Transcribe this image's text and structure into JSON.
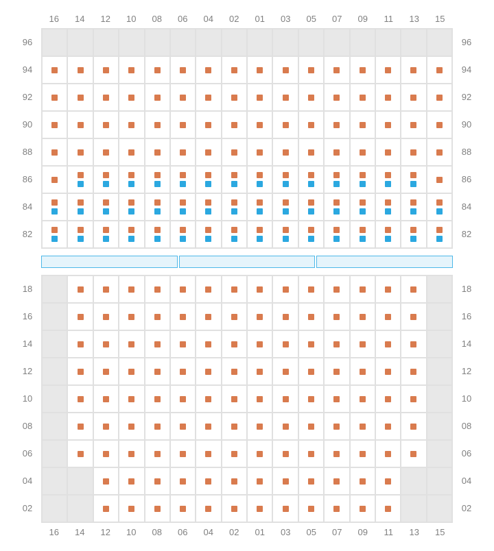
{
  "colors": {
    "orange": "#d97b4e",
    "blue": "#2ba8e0",
    "empty_bg": "#e8e8e8",
    "grid_line": "#e0e0e0",
    "label": "#808080",
    "stage_fill": "#e5f4fb",
    "stage_border": "#4db8e8"
  },
  "columns": [
    "16",
    "14",
    "12",
    "10",
    "08",
    "06",
    "04",
    "02",
    "01",
    "03",
    "05",
    "07",
    "09",
    "11",
    "13",
    "15"
  ],
  "upper": {
    "rowLabels": [
      "96",
      "94",
      "92",
      "90",
      "88",
      "86",
      "84",
      "82"
    ],
    "rows": [
      [
        [
          "e"
        ],
        [
          "e"
        ],
        [
          "e"
        ],
        [
          "e"
        ],
        [
          "e"
        ],
        [
          "e"
        ],
        [
          "e"
        ],
        [
          "e"
        ],
        [
          "e"
        ],
        [
          "e"
        ],
        [
          "e"
        ],
        [
          "e"
        ],
        [
          "e"
        ],
        [
          "e"
        ],
        [
          "e"
        ],
        [
          "e"
        ]
      ],
      [
        [
          "o"
        ],
        [
          "o"
        ],
        [
          "o"
        ],
        [
          "o"
        ],
        [
          "o"
        ],
        [
          "o"
        ],
        [
          "o"
        ],
        [
          "o"
        ],
        [
          "o"
        ],
        [
          "o"
        ],
        [
          "o"
        ],
        [
          "o"
        ],
        [
          "o"
        ],
        [
          "o"
        ],
        [
          "o"
        ],
        [
          "o"
        ]
      ],
      [
        [
          "o"
        ],
        [
          "o"
        ],
        [
          "o"
        ],
        [
          "o"
        ],
        [
          "o"
        ],
        [
          "o"
        ],
        [
          "o"
        ],
        [
          "o"
        ],
        [
          "o"
        ],
        [
          "o"
        ],
        [
          "o"
        ],
        [
          "o"
        ],
        [
          "o"
        ],
        [
          "o"
        ],
        [
          "o"
        ],
        [
          "o"
        ]
      ],
      [
        [
          "o"
        ],
        [
          "o"
        ],
        [
          "o"
        ],
        [
          "o"
        ],
        [
          "o"
        ],
        [
          "o"
        ],
        [
          "o"
        ],
        [
          "o"
        ],
        [
          "o"
        ],
        [
          "o"
        ],
        [
          "o"
        ],
        [
          "o"
        ],
        [
          "o"
        ],
        [
          "o"
        ],
        [
          "o"
        ],
        [
          "o"
        ]
      ],
      [
        [
          "o"
        ],
        [
          "o"
        ],
        [
          "o"
        ],
        [
          "o"
        ],
        [
          "o"
        ],
        [
          "o"
        ],
        [
          "o"
        ],
        [
          "o"
        ],
        [
          "o"
        ],
        [
          "o"
        ],
        [
          "o"
        ],
        [
          "o"
        ],
        [
          "o"
        ],
        [
          "o"
        ],
        [
          "o"
        ],
        [
          "o"
        ]
      ],
      [
        [
          "o"
        ],
        [
          "o",
          "b"
        ],
        [
          "o",
          "b"
        ],
        [
          "o",
          "b"
        ],
        [
          "o",
          "b"
        ],
        [
          "o",
          "b"
        ],
        [
          "o",
          "b"
        ],
        [
          "o",
          "b"
        ],
        [
          "o",
          "b"
        ],
        [
          "o",
          "b"
        ],
        [
          "o",
          "b"
        ],
        [
          "o",
          "b"
        ],
        [
          "o",
          "b"
        ],
        [
          "o",
          "b"
        ],
        [
          "o",
          "b"
        ],
        [
          "o"
        ]
      ],
      [
        [
          "o",
          "b"
        ],
        [
          "o",
          "b"
        ],
        [
          "o",
          "b"
        ],
        [
          "o",
          "b"
        ],
        [
          "o",
          "b"
        ],
        [
          "o",
          "b"
        ],
        [
          "o",
          "b"
        ],
        [
          "o",
          "b"
        ],
        [
          "o",
          "b"
        ],
        [
          "o",
          "b"
        ],
        [
          "o",
          "b"
        ],
        [
          "o",
          "b"
        ],
        [
          "o",
          "b"
        ],
        [
          "o",
          "b"
        ],
        [
          "o",
          "b"
        ],
        [
          "o",
          "b"
        ]
      ],
      [
        [
          "o",
          "b"
        ],
        [
          "o",
          "b"
        ],
        [
          "o",
          "b"
        ],
        [
          "o",
          "b"
        ],
        [
          "o",
          "b"
        ],
        [
          "o",
          "b"
        ],
        [
          "o",
          "b"
        ],
        [
          "o",
          "b"
        ],
        [
          "o",
          "b"
        ],
        [
          "o",
          "b"
        ],
        [
          "o",
          "b"
        ],
        [
          "o",
          "b"
        ],
        [
          "o",
          "b"
        ],
        [
          "o",
          "b"
        ],
        [
          "o",
          "b"
        ],
        [
          "o",
          "b"
        ]
      ]
    ]
  },
  "stage_segments": 3,
  "lower": {
    "rowLabels": [
      "18",
      "16",
      "14",
      "12",
      "10",
      "08",
      "06",
      "04",
      "02"
    ],
    "rows": [
      [
        [
          "e"
        ],
        [
          "o"
        ],
        [
          "o"
        ],
        [
          "o"
        ],
        [
          "o"
        ],
        [
          "o"
        ],
        [
          "o"
        ],
        [
          "o"
        ],
        [
          "o"
        ],
        [
          "o"
        ],
        [
          "o"
        ],
        [
          "o"
        ],
        [
          "o"
        ],
        [
          "o"
        ],
        [
          "o"
        ],
        [
          "e"
        ]
      ],
      [
        [
          "e"
        ],
        [
          "o"
        ],
        [
          "o"
        ],
        [
          "o"
        ],
        [
          "o"
        ],
        [
          "o"
        ],
        [
          "o"
        ],
        [
          "o"
        ],
        [
          "o"
        ],
        [
          "o"
        ],
        [
          "o"
        ],
        [
          "o"
        ],
        [
          "o"
        ],
        [
          "o"
        ],
        [
          "o"
        ],
        [
          "e"
        ]
      ],
      [
        [
          "e"
        ],
        [
          "o"
        ],
        [
          "o"
        ],
        [
          "o"
        ],
        [
          "o"
        ],
        [
          "o"
        ],
        [
          "o"
        ],
        [
          "o"
        ],
        [
          "o"
        ],
        [
          "o"
        ],
        [
          "o"
        ],
        [
          "o"
        ],
        [
          "o"
        ],
        [
          "o"
        ],
        [
          "o"
        ],
        [
          "e"
        ]
      ],
      [
        [
          "e"
        ],
        [
          "o"
        ],
        [
          "o"
        ],
        [
          "o"
        ],
        [
          "o"
        ],
        [
          "o"
        ],
        [
          "o"
        ],
        [
          "o"
        ],
        [
          "o"
        ],
        [
          "o"
        ],
        [
          "o"
        ],
        [
          "o"
        ],
        [
          "o"
        ],
        [
          "o"
        ],
        [
          "o"
        ],
        [
          "e"
        ]
      ],
      [
        [
          "e"
        ],
        [
          "o"
        ],
        [
          "o"
        ],
        [
          "o"
        ],
        [
          "o"
        ],
        [
          "o"
        ],
        [
          "o"
        ],
        [
          "o"
        ],
        [
          "o"
        ],
        [
          "o"
        ],
        [
          "o"
        ],
        [
          "o"
        ],
        [
          "o"
        ],
        [
          "o"
        ],
        [
          "o"
        ],
        [
          "e"
        ]
      ],
      [
        [
          "e"
        ],
        [
          "o"
        ],
        [
          "o"
        ],
        [
          "o"
        ],
        [
          "o"
        ],
        [
          "o"
        ],
        [
          "o"
        ],
        [
          "o"
        ],
        [
          "o"
        ],
        [
          "o"
        ],
        [
          "o"
        ],
        [
          "o"
        ],
        [
          "o"
        ],
        [
          "o"
        ],
        [
          "o"
        ],
        [
          "e"
        ]
      ],
      [
        [
          "e"
        ],
        [
          "o"
        ],
        [
          "o"
        ],
        [
          "o"
        ],
        [
          "o"
        ],
        [
          "o"
        ],
        [
          "o"
        ],
        [
          "o"
        ],
        [
          "o"
        ],
        [
          "o"
        ],
        [
          "o"
        ],
        [
          "o"
        ],
        [
          "o"
        ],
        [
          "o"
        ],
        [
          "o"
        ],
        [
          "e"
        ]
      ],
      [
        [
          "e"
        ],
        [
          "e"
        ],
        [
          "o"
        ],
        [
          "o"
        ],
        [
          "o"
        ],
        [
          "o"
        ],
        [
          "o"
        ],
        [
          "o"
        ],
        [
          "o"
        ],
        [
          "o"
        ],
        [
          "o"
        ],
        [
          "o"
        ],
        [
          "o"
        ],
        [
          "o"
        ],
        [
          "e"
        ],
        [
          "e"
        ]
      ],
      [
        [
          "e"
        ],
        [
          "e"
        ],
        [
          "o"
        ],
        [
          "o"
        ],
        [
          "o"
        ],
        [
          "o"
        ],
        [
          "o"
        ],
        [
          "o"
        ],
        [
          "o"
        ],
        [
          "o"
        ],
        [
          "o"
        ],
        [
          "o"
        ],
        [
          "o"
        ],
        [
          "o"
        ],
        [
          "e"
        ],
        [
          "e"
        ]
      ]
    ]
  }
}
